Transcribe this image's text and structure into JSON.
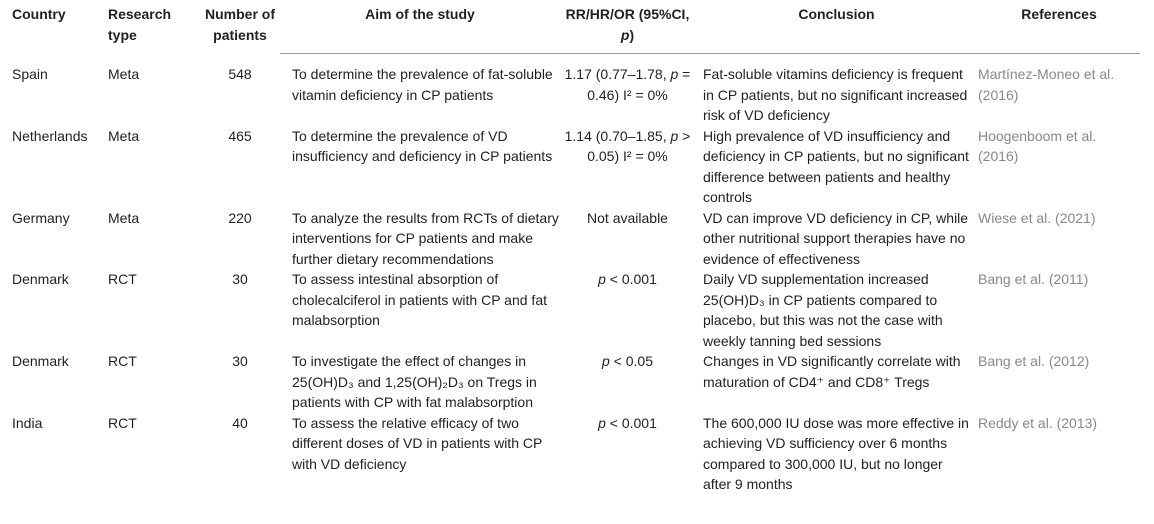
{
  "table": {
    "header": [
      "Country",
      "Research type",
      "Number of patients",
      "Aim of the study",
      "RR/HR/OR (95%CI, p)",
      "Conclusion",
      "References"
    ],
    "rows": [
      [
        "Spain",
        "Meta",
        548,
        "To determine the prevalence of fat-soluble vitamin deficiency in CP patients",
        "1.17 (0.77–1.78, p = 0.46) I² = 0%",
        "Fat-soluble vitamins deficiency is frequent in CP patients, but no significant increased risk of VD deficiency",
        "Martínez-Moneo et al. (2016)"
      ],
      [
        "Netherlands",
        "Meta",
        465,
        "To determine the prevalence of VD insufficiency and deficiency in CP patients",
        "1.14 (0.70–1.85, p > 0.05) I² = 0%",
        "High prevalence of VD insufficiency and deficiency in CP patients, but no significant difference between patients and healthy controls",
        "Hoogenboom et al. (2016)"
      ],
      [
        "Germany",
        "Meta",
        220,
        "To analyze the results from RCTs of dietary interventions for CP patients and make further dietary recommendations",
        "Not available",
        "VD can improve VD deficiency in CP, while other nutritional support therapies have no evidence of effectiveness",
        "Wiese et al. (2021)"
      ],
      [
        "Denmark",
        "RCT",
        30,
        "To assess intestinal absorption of cholecalciferol in patients with CP and fat malabsorption",
        "p < 0.001",
        "Daily VD supplementation increased 25(OH)D₃ in CP patients compared to placebo, but this was not the case with weekly tanning bed sessions",
        "Bang et al. (2011)"
      ],
      [
        "Denmark",
        "RCT",
        30,
        "To investigate the effect of changes in 25(OH)D₃ and 1,25(OH)₂D₃ on Tregs in patients with CP with fat malabsorption",
        "p < 0.05",
        "Changes in VD significantly correlate with maturation of CD4⁺ and CD8⁺ Tregs",
        "Bang et al. (2012)"
      ],
      [
        "India",
        "RCT",
        40,
        "To assess the relative efficacy of two different doses of VD in patients with CP with VD deficiency",
        "p < 0.001",
        "The 600,000 IU dose was more effective in achieving VD sufficiency over 6 months compared to 300,000 IU, but no longer after 9 months",
        "Reddy et al. (2013)"
      ]
    ]
  }
}
